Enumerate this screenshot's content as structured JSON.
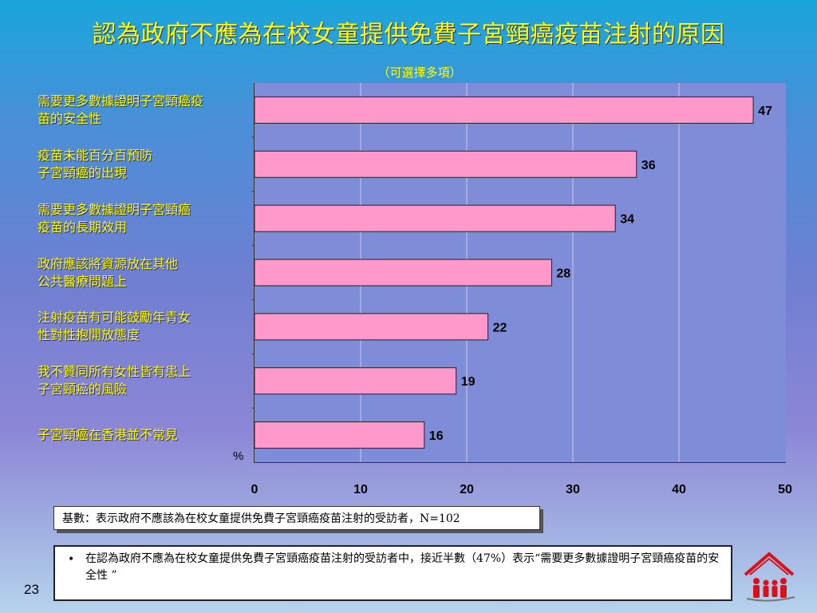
{
  "title": "認為政府不應為在校女童提供免費子宮頸癌疫苗注射的原因",
  "subtitle": "（可選擇多項）",
  "unit_label": "%",
  "base_text": "基數：表示政府不應該為在校女童提供免費子宮頸癌疫苗注射的受訪者，N=102",
  "note": {
    "bullet": "•",
    "text": "在認為政府不應為在校女童提供免費子宮頸癌疫苗注射的受訪者中，接近半數（47%）表示“需要更多數據證明子宮頸癌疫苗的安全性 ”"
  },
  "page_number": "23",
  "colors": {
    "bar_fill": "#ff99cc",
    "bar_stroke": "#222222",
    "gridline": "#c8c8e8",
    "label_text": "#ffff00"
  },
  "chart_data": {
    "type": "bar",
    "orientation": "horizontal",
    "categories": [
      [
        "需要更多數據證明子宮頸癌疫",
        "苗的安全性"
      ],
      [
        "疫苗未能百分百預防",
        "子宮頸癌的出現"
      ],
      [
        "需要更多數據證明子宮頸癌",
        "疫苗的長期效用"
      ],
      [
        "政府應該將資源放在其他",
        "公共醫療問題上"
      ],
      [
        "注射疫苗有可能鼓勵年青女",
        "性對性抱開放態度"
      ],
      [
        "我不贊同所有女性皆有患上",
        "子宮頸癌的風險"
      ],
      [
        "子宮頸癌在香港並不常見"
      ]
    ],
    "values": [
      47,
      36,
      34,
      28,
      22,
      19,
      16
    ],
    "xlim": [
      0,
      50
    ],
    "xticks": [
      "0",
      "10",
      "20",
      "30",
      "40",
      "50"
    ],
    "grid": true
  }
}
